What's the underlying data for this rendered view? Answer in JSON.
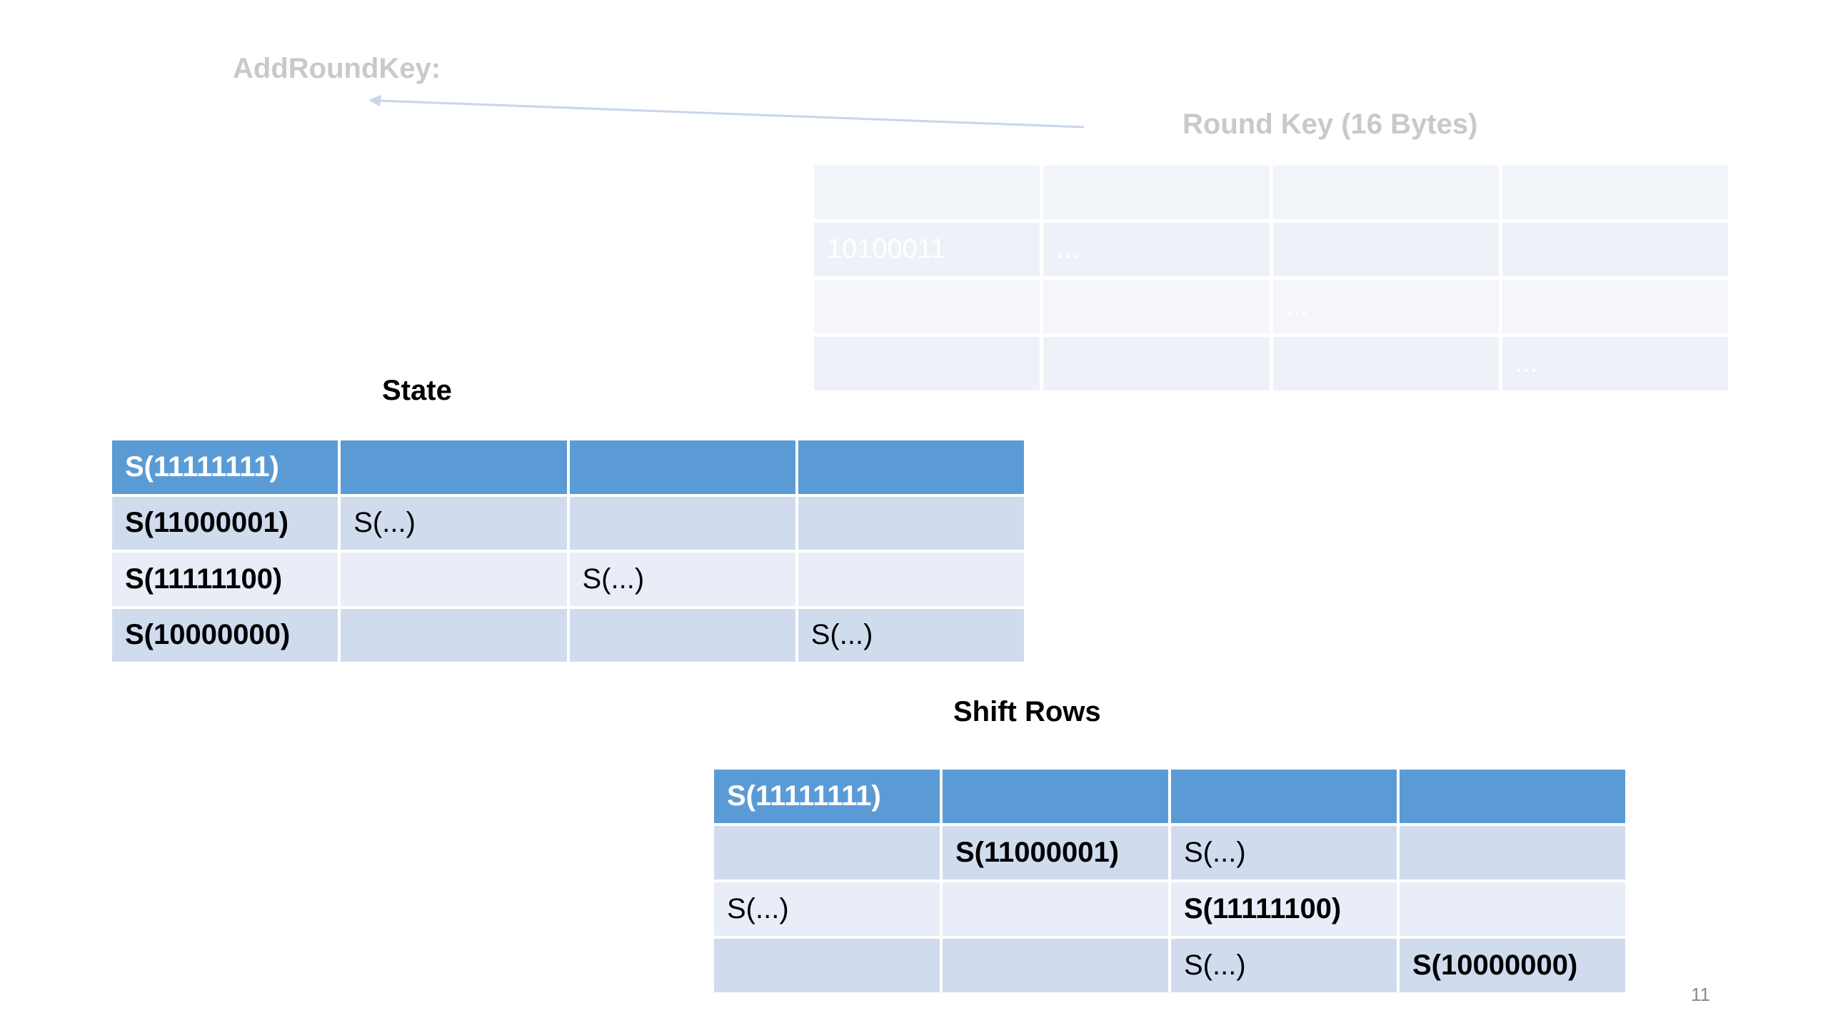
{
  "add_round_key": {
    "label": "AddRoundKey:"
  },
  "round_key": {
    "title": "Round Key (16 Bytes)",
    "rows": [
      [
        "",
        "",
        "",
        ""
      ],
      [
        "10100011",
        "...",
        "",
        ""
      ],
      [
        "",
        "",
        "...",
        ""
      ],
      [
        "",
        "",
        "",
        "..."
      ]
    ]
  },
  "state": {
    "title": "State",
    "rows": [
      [
        "S(11111111)",
        "",
        "",
        ""
      ],
      [
        "S(11000001)",
        "S(...)",
        "",
        ""
      ],
      [
        "S(11111100)",
        "",
        "S(...)",
        ""
      ],
      [
        "S(10000000)",
        "",
        "",
        "S(...)"
      ]
    ]
  },
  "shift_rows": {
    "title": "Shift Rows",
    "rows": [
      [
        "S(11111111)",
        "",
        "",
        ""
      ],
      [
        "",
        "S(11000001)",
        "S(...)",
        ""
      ],
      [
        "S(...)",
        "",
        "S(11111100)",
        ""
      ],
      [
        "",
        "",
        "S(...)",
        "S(10000000)"
      ]
    ]
  },
  "page_number": "11",
  "colors": {
    "header_row": "#5b9bd5",
    "row_dark": "#d0dcee",
    "row_light": "#e8edf7",
    "faded_text": "#c9c9c9",
    "arrow": "#c8d6ea"
  }
}
